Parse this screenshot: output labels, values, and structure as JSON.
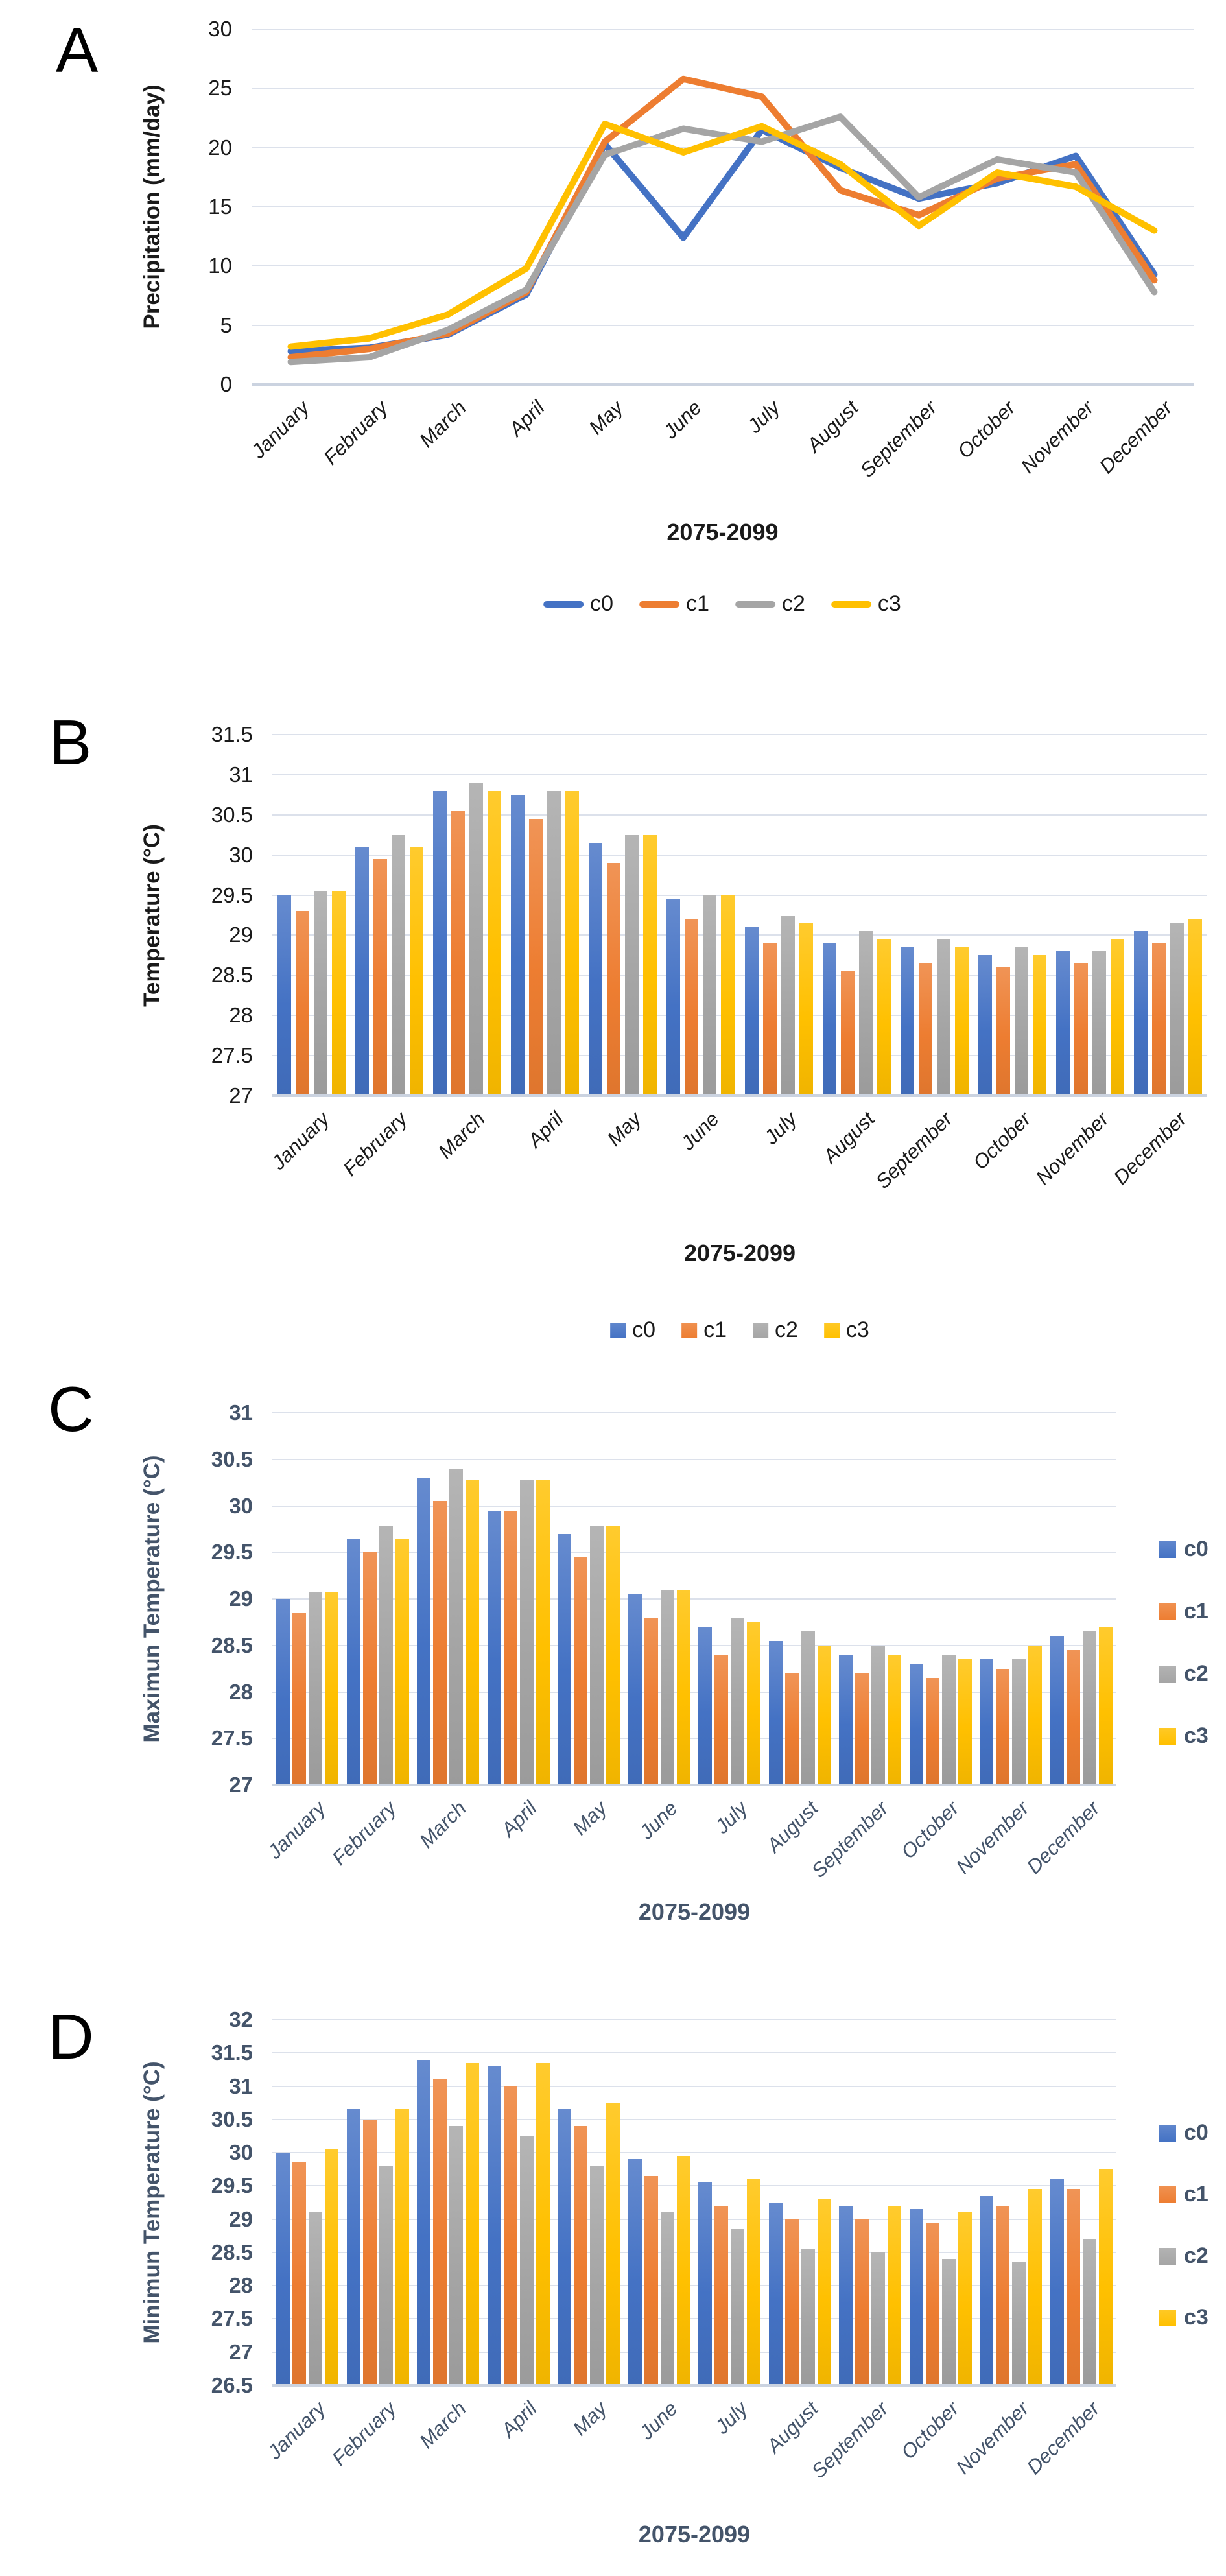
{
  "figure": {
    "background": "#FFFFFF"
  },
  "series_colors": {
    "c0": "#4472C4",
    "c1": "#ED7D31",
    "c2": "#A5A5A5",
    "c3": "#FFC000"
  },
  "chart_data": [
    {
      "panel_label": "A",
      "type": "line",
      "text_color": "#1A1A1A",
      "y_axis": {
        "title": "Precipitation (mm/day)",
        "min": 0,
        "max": 30,
        "step": 5
      },
      "x_axis": {
        "title": "2075-2099",
        "categories": [
          "January",
          "February",
          "March",
          "April",
          "May",
          "June",
          "July",
          "August",
          "September",
          "October",
          "November",
          "December"
        ]
      },
      "legend": {
        "position": "bottom",
        "swatch": "line"
      },
      "series": [
        {
          "name": "c0",
          "color": "#4472C4",
          "values": [
            2.8,
            3.1,
            4.2,
            7.6,
            20.3,
            12.4,
            21.5,
            18.3,
            15.7,
            17.0,
            19.3,
            9.3
          ]
        },
        {
          "name": "c1",
          "color": "#ED7D31",
          "values": [
            2.3,
            3.0,
            4.3,
            7.8,
            20.5,
            25.8,
            24.3,
            16.4,
            14.3,
            17.4,
            18.6,
            8.8
          ]
        },
        {
          "name": "c2",
          "color": "#A5A5A5",
          "values": [
            1.9,
            2.3,
            4.6,
            8.0,
            19.4,
            21.6,
            20.5,
            22.6,
            15.8,
            19.0,
            17.9,
            7.8
          ]
        },
        {
          "name": "c3",
          "color": "#FFC000",
          "values": [
            3.2,
            3.9,
            5.9,
            9.8,
            22.0,
            19.6,
            21.8,
            18.6,
            13.4,
            17.9,
            16.7,
            13.0
          ]
        }
      ]
    },
    {
      "panel_label": "B",
      "type": "bar",
      "text_color": "#1A1A1A",
      "y_axis": {
        "title": "Temperature (°C)",
        "min": 27,
        "max": 31.5,
        "step": 0.5
      },
      "x_axis": {
        "title": "2075-2099",
        "categories": [
          "January",
          "February",
          "March",
          "April",
          "May",
          "June",
          "July",
          "August",
          "September",
          "October",
          "November",
          "December"
        ]
      },
      "legend": {
        "position": "bottom",
        "swatch": "box"
      },
      "series": [
        {
          "name": "c0",
          "color": "#4472C4",
          "values": [
            29.5,
            30.1,
            30.8,
            30.75,
            30.15,
            29.45,
            29.1,
            28.9,
            28.85,
            28.75,
            28.8,
            29.05
          ]
        },
        {
          "name": "c1",
          "color": "#ED7D31",
          "values": [
            29.3,
            29.95,
            30.55,
            30.45,
            29.9,
            29.2,
            28.9,
            28.55,
            28.65,
            28.6,
            28.65,
            28.9
          ]
        },
        {
          "name": "c2",
          "color": "#A5A5A5",
          "values": [
            29.55,
            30.25,
            30.9,
            30.8,
            30.25,
            29.5,
            29.25,
            29.05,
            28.95,
            28.85,
            28.8,
            29.15
          ]
        },
        {
          "name": "c3",
          "color": "#FFC000",
          "values": [
            29.55,
            30.1,
            30.8,
            30.8,
            30.25,
            29.5,
            29.15,
            28.95,
            28.85,
            28.75,
            28.95,
            29.2
          ]
        }
      ]
    },
    {
      "panel_label": "C",
      "type": "bar",
      "text_color": "#44546A",
      "y_axis": {
        "title": "Maximun Temperature (°C)",
        "min": 27,
        "max": 31,
        "step": 0.5
      },
      "x_axis": {
        "title": "2075-2099",
        "categories": [
          "January",
          "February",
          "March",
          "April",
          "May",
          "June",
          "July",
          "August",
          "September",
          "October",
          "November",
          "December"
        ]
      },
      "legend": {
        "position": "right",
        "swatch": "box"
      },
      "series": [
        {
          "name": "c0",
          "color": "#4472C4",
          "values": [
            29.0,
            29.65,
            30.3,
            29.95,
            29.7,
            29.05,
            28.7,
            28.55,
            28.4,
            28.3,
            28.35,
            28.6
          ]
        },
        {
          "name": "c1",
          "color": "#ED7D31",
          "values": [
            28.85,
            29.5,
            30.05,
            29.95,
            29.45,
            28.8,
            28.4,
            28.2,
            28.2,
            28.15,
            28.25,
            28.45
          ]
        },
        {
          "name": "c2",
          "color": "#A5A5A5",
          "values": [
            29.08,
            29.78,
            30.4,
            30.28,
            29.78,
            29.1,
            28.8,
            28.65,
            28.5,
            28.4,
            28.35,
            28.65
          ]
        },
        {
          "name": "c3",
          "color": "#FFC000",
          "values": [
            29.08,
            29.65,
            30.28,
            30.28,
            29.78,
            29.1,
            28.75,
            28.5,
            28.4,
            28.35,
            28.5,
            28.7
          ]
        }
      ]
    },
    {
      "panel_label": "D",
      "type": "bar",
      "text_color": "#44546A",
      "y_axis": {
        "title": "Minimun Temperature (°C)",
        "min": 26.5,
        "max": 32,
        "step": 0.5
      },
      "x_axis": {
        "title": "2075-2099",
        "categories": [
          "January",
          "February",
          "March",
          "April",
          "May",
          "June",
          "July",
          "August",
          "September",
          "October",
          "November",
          "December"
        ]
      },
      "legend": {
        "position": "right",
        "swatch": "box"
      },
      "series": [
        {
          "name": "c0",
          "color": "#4472C4",
          "values": [
            30.0,
            30.65,
            31.4,
            31.3,
            30.65,
            29.9,
            29.55,
            29.25,
            29.2,
            29.15,
            29.35,
            29.6
          ]
        },
        {
          "name": "c1",
          "color": "#ED7D31",
          "values": [
            29.85,
            30.5,
            31.1,
            31.0,
            30.4,
            29.65,
            29.2,
            29.0,
            29.0,
            28.95,
            29.2,
            29.45
          ]
        },
        {
          "name": "c2",
          "color": "#A5A5A5",
          "values": [
            29.1,
            29.8,
            30.4,
            30.25,
            29.8,
            29.1,
            28.85,
            28.55,
            28.5,
            28.4,
            28.35,
            28.7
          ]
        },
        {
          "name": "c3",
          "color": "#FFC000",
          "values": [
            30.05,
            30.65,
            31.35,
            31.35,
            30.75,
            29.95,
            29.6,
            29.3,
            29.2,
            29.1,
            29.45,
            29.75
          ]
        }
      ]
    }
  ]
}
